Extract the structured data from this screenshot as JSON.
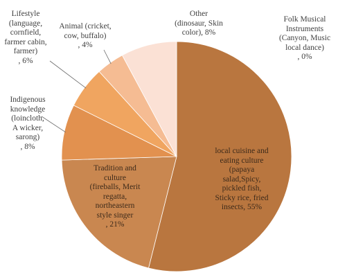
{
  "chart_data": {
    "type": "pie",
    "slices": [
      {
        "label": "local cuisine and\neating culture\n(papaya\nsalad,Spicy,\npickled fish,\nSticky rice, fried\ninsects, 55%",
        "value": 55,
        "color": "#b9763f"
      },
      {
        "label": "Tradition and\nculture\n(fireballs, Merit\nregatta,\nnortheastern\nstyle singer\n, 21%",
        "value": 21,
        "color": "#c98750"
      },
      {
        "label": "Indigenous\nknowledge\n(loincloth,\nA wicker,\nsarong)\n, 8%",
        "value": 8,
        "color": "#e2914f"
      },
      {
        "label": "Lifestyle\n(language,\ncornfield,\nfarmer cabin,\nfarmer)\n, 6%",
        "value": 6,
        "color": "#f0a560"
      },
      {
        "label": "Animal (cricket,\ncow, buffalo)\n, 4%",
        "value": 4,
        "color": "#f5bc93"
      },
      {
        "label": "Other\n(dinosaur, Skin\ncolor), 8%",
        "value": 8,
        "color": "#fbe1d5"
      },
      {
        "label": "Folk Musical\nInstruments\n(Canyon, Music\nlocal dance)\n, 0%",
        "value": 0,
        "color": "#f7d8c4"
      }
    ]
  }
}
